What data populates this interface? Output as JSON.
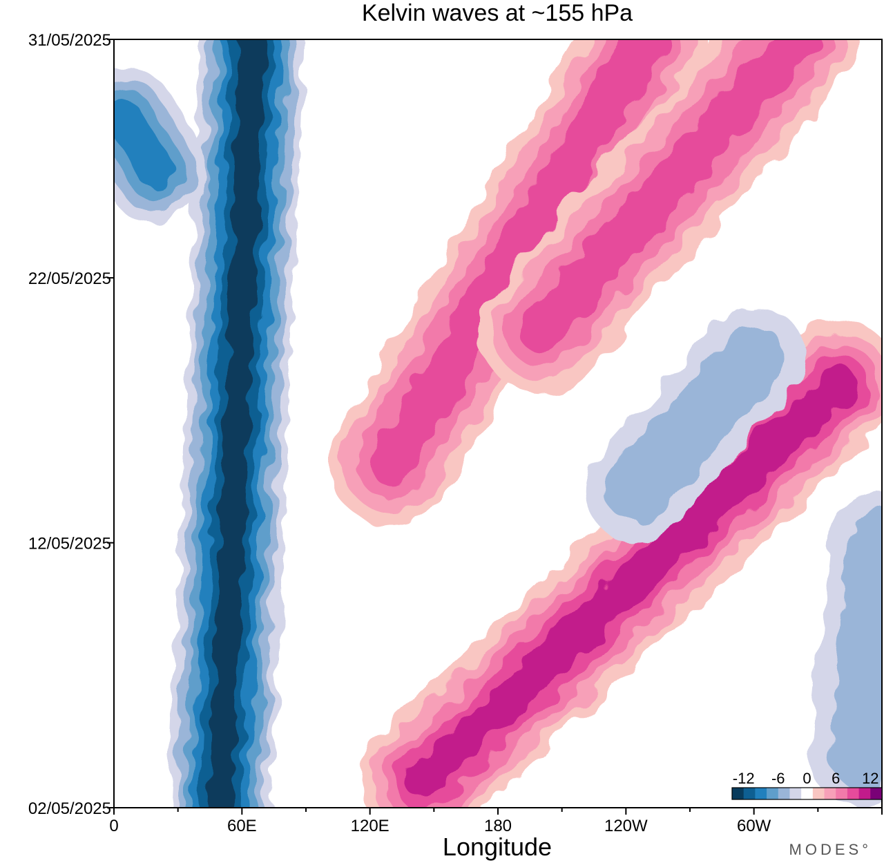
{
  "chart_data": {
    "type": "heatmap",
    "title": "Kelvin waves at ~155 hPa",
    "xlabel": "Longitude",
    "ylabel": "",
    "x_ticks": [
      "0",
      "60E",
      "120E",
      "180",
      "120W",
      "60W"
    ],
    "x_tick_values": [
      0,
      60,
      120,
      180,
      240,
      300
    ],
    "xlim": [
      0,
      360
    ],
    "y_ticks": [
      "02/05/2025",
      "12/05/2025",
      "22/05/2025",
      "31/05/2025"
    ],
    "y_tick_values": [
      "2025-05-02",
      "2025-05-12",
      "2025-05-22",
      "2025-05-31"
    ],
    "ylim": [
      "2025-05-02",
      "2025-05-31"
    ],
    "colorbar": {
      "ticks": [
        "-12",
        "-6",
        "0",
        "6",
        "12"
      ],
      "tick_values": [
        -12,
        -6,
        0,
        6,
        12
      ],
      "levels": [
        -12,
        -10,
        -8,
        -6,
        -4,
        -2,
        2,
        4,
        6,
        8,
        10,
        12,
        14
      ],
      "colors": [
        "#083b5c",
        "#0e5f92",
        "#2180bd",
        "#5f9ecb",
        "#9ab5d8",
        "#d4d6e9",
        "#ffffff",
        "#f9c6c2",
        "#f7a0b8",
        "#f27aaa",
        "#e64b9b",
        "#c21b8b",
        "#7a0177"
      ],
      "placement": "bottom-right"
    },
    "features": [
      {
        "kind": "negative",
        "lon_start": 50,
        "date_start": "2025-05-02",
        "lon_end": 65,
        "date_end": "2025-05-31",
        "peak": -12
      },
      {
        "kind": "negative",
        "lon_start": 5,
        "date_start": "2025-05-28",
        "lon_end": 20,
        "date_end": "2025-05-26",
        "peak": -8
      },
      {
        "kind": "positive",
        "lon_start": 145,
        "date_start": "2025-05-03",
        "lon_end": 340,
        "date_end": "2025-05-18",
        "peak": 10
      },
      {
        "kind": "positive",
        "lon_start": 130,
        "date_start": "2025-05-15",
        "lon_end": 250,
        "date_end": "2025-05-31",
        "peak": 8
      },
      {
        "kind": "positive",
        "lon_start": 200,
        "date_start": "2025-05-20",
        "lon_end": 320,
        "date_end": "2025-05-31",
        "peak": 8
      },
      {
        "kind": "negative",
        "lon_start": 245,
        "date_start": "2025-05-14",
        "lon_end": 300,
        "date_end": "2025-05-19",
        "peak": -4
      },
      {
        "kind": "negative",
        "lon_start": 350,
        "date_start": "2025-05-04",
        "lon_end": 360,
        "date_end": "2025-05-12",
        "peak": -4
      }
    ]
  },
  "branding": {
    "text": "MODES°"
  }
}
